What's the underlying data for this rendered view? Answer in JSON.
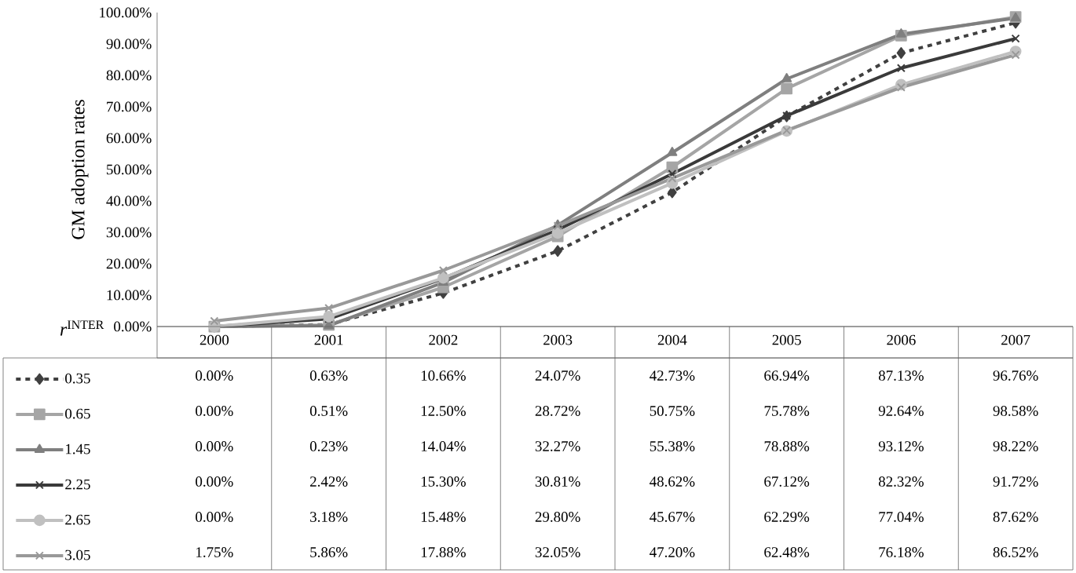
{
  "chart_data": {
    "type": "line",
    "ylabel": "GM adoption rates",
    "legend_title": "*r*$^{INTER}$",
    "legend": "bottom",
    "grid": false,
    "categories": [
      "2000",
      "2001",
      "2002",
      "2003",
      "2004",
      "2005",
      "2006",
      "2007"
    ],
    "ylim": [
      0,
      100
    ],
    "yticks": [
      {
        "value": 0,
        "label": "0.00%"
      },
      {
        "value": 10,
        "label": "10.00%"
      },
      {
        "value": 20,
        "label": "20.00%"
      },
      {
        "value": 30,
        "label": "30.00%"
      },
      {
        "value": 40,
        "label": "40.00%"
      },
      {
        "value": 50,
        "label": "50.00%"
      },
      {
        "value": 60,
        "label": "60.00%"
      },
      {
        "value": 70,
        "label": "70.00%"
      },
      {
        "value": 80,
        "label": "80.00%"
      },
      {
        "value": 90,
        "label": "90.00%"
      },
      {
        "value": 100,
        "label": "100.00%"
      }
    ],
    "series": [
      {
        "name": "0.35",
        "color": "#404040",
        "marker": "diamond",
        "line_style": "dashed",
        "values": [
          0,
          0.63,
          10.66,
          24.07,
          42.73,
          66.94,
          87.13,
          96.76
        ],
        "value_labels": [
          "0.00%",
          "0.63%",
          "10.66%",
          "24.07%",
          "42.73%",
          "66.94%",
          "87.13%",
          "96.76%"
        ]
      },
      {
        "name": "0.65",
        "color": "#a5a5a5",
        "marker": "square",
        "line_style": "solid",
        "values": [
          0,
          0.51,
          12.5,
          28.72,
          50.75,
          75.78,
          92.64,
          98.58
        ],
        "value_labels": [
          "0.00%",
          "0.51%",
          "12.50%",
          "28.72%",
          "50.75%",
          "75.78%",
          "92.64%",
          "98.58%"
        ]
      },
      {
        "name": "1.45",
        "color": "#7f7f7f",
        "marker": "triangle",
        "line_style": "solid",
        "values": [
          0,
          0.23,
          14.04,
          32.27,
          55.38,
          78.88,
          93.12,
          98.22
        ],
        "value_labels": [
          "0.00%",
          "0.23%",
          "14.04%",
          "32.27%",
          "55.38%",
          "78.88%",
          "93.12%",
          "98.22%"
        ]
      },
      {
        "name": "2.25",
        "color": "#3a3a3a",
        "marker": "cross",
        "line_style": "solid",
        "values": [
          0,
          2.42,
          15.3,
          30.81,
          48.62,
          67.12,
          82.32,
          91.72
        ],
        "value_labels": [
          "0.00%",
          "2.42%",
          "15.30%",
          "30.81%",
          "48.62%",
          "67.12%",
          "82.32%",
          "91.72%"
        ]
      },
      {
        "name": "2.65",
        "color": "#c0c0c0",
        "marker": "circle",
        "line_style": "solid",
        "values": [
          0,
          3.18,
          15.48,
          29.8,
          45.67,
          62.29,
          77.04,
          87.62
        ],
        "value_labels": [
          "0.00%",
          "3.18%",
          "15.48%",
          "29.80%",
          "45.67%",
          "62.29%",
          "77.04%",
          "87.62%"
        ]
      },
      {
        "name": "3.05",
        "color": "#999999",
        "marker": "cross",
        "line_style": "solid",
        "values": [
          1.75,
          5.86,
          17.88,
          32.05,
          47.2,
          62.48,
          76.18,
          86.52
        ],
        "value_labels": [
          "1.75%",
          "5.86%",
          "17.88%",
          "32.05%",
          "47.20%",
          "62.48%",
          "76.18%",
          "86.52%"
        ]
      }
    ]
  }
}
